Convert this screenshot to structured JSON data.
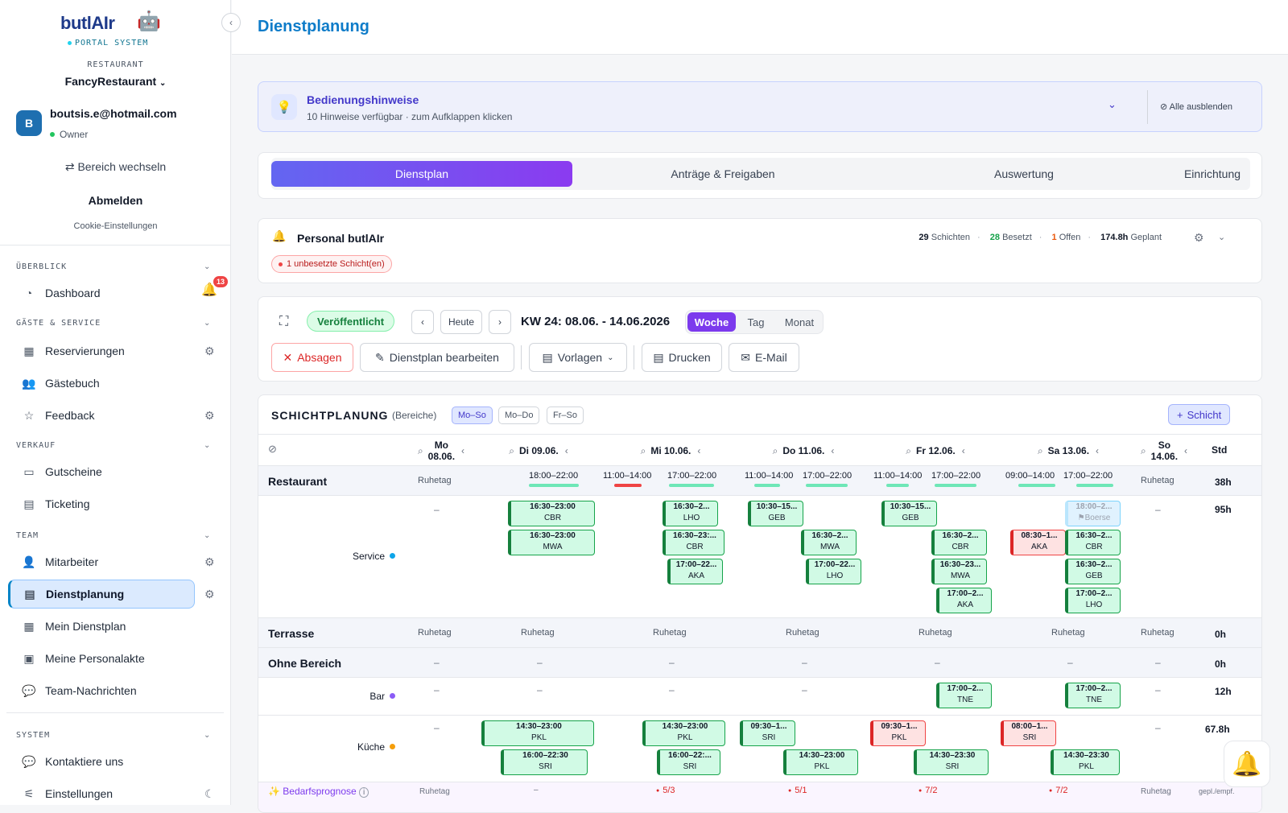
{
  "sidebar": {
    "brand_a": "butlAI",
    "brand_b": "r",
    "portal": "PORTAL SYSTEM",
    "restaurant_label": "RESTAURANT",
    "restaurant_name": "FancyRestaurant",
    "avatar_initial": "B",
    "user_email": "boutsis.e@hotmail.com",
    "user_role": "Owner",
    "switch_label": "Bereich wechseln",
    "logout_label": "Abmelden",
    "cookie_label": "Cookie-Einstellungen",
    "notification_count": "13",
    "sections": [
      {
        "title": "ÜBERBLICK"
      },
      {
        "title": "GÄSTE & SERVICE"
      },
      {
        "title": "VERKAUF"
      },
      {
        "title": "TEAM"
      },
      {
        "title": "SYSTEM"
      }
    ],
    "items": [
      {
        "label": "Dashboard"
      },
      {
        "label": "Reservierungen"
      },
      {
        "label": "Gästebuch"
      },
      {
        "label": "Feedback"
      },
      {
        "label": "Gutscheine"
      },
      {
        "label": "Ticketing"
      },
      {
        "label": "Mitarbeiter"
      },
      {
        "label": "Dienstplanung"
      },
      {
        "label": "Mein Dienstplan"
      },
      {
        "label": "Meine Personalakte"
      },
      {
        "label": "Team-Nachrichten"
      },
      {
        "label": "Kontaktiere uns"
      },
      {
        "label": "Einstellungen"
      }
    ]
  },
  "header": {
    "title": "Dienstplanung"
  },
  "hint": {
    "title": "Bedienungshinweise",
    "subtitle": "10 Hinweise verfügbar · zum Aufklappen klicken",
    "hide_all": "Alle ausblenden"
  },
  "tabs": [
    {
      "label": "Dienstplan"
    },
    {
      "label": "Anträge & Freigaben"
    },
    {
      "label": "Auswertung"
    },
    {
      "label": "Einrichtung"
    }
  ],
  "personal": {
    "title": "Personal butlAIr",
    "unfilled": "1 unbesetzte Schicht(en)",
    "shifts_count": "29",
    "shifts_label": "Schichten",
    "filled_count": "28",
    "filled_label": "Besetzt",
    "open_count": "1",
    "open_label": "Offen",
    "planned_hours": "174.8h",
    "planned_label": "Geplant"
  },
  "controls": {
    "status": "Veröffentlicht",
    "today": "Heute",
    "week_label": "KW 24: 08.06. - 14.06.2026",
    "views": [
      {
        "label": "Woche"
      },
      {
        "label": "Tag"
      },
      {
        "label": "Monat"
      }
    ],
    "cancel": "Absagen",
    "edit": "Dienstplan bearbeiten",
    "templates": "Vorlagen",
    "print": "Drucken",
    "email": "E-Mail"
  },
  "planning": {
    "title": "SCHICHTPLANUNG",
    "subtitle": "(Bereiche)",
    "filters": [
      {
        "label": "Mo–So"
      },
      {
        "label": "Mo–Do"
      },
      {
        "label": "Fr–So"
      }
    ],
    "add_shift": "Schicht",
    "std_header": "Std",
    "days": [
      {
        "label": "Mo",
        "date": "08.06."
      },
      {
        "label": "Di 09.06."
      },
      {
        "label": "Mi 10.06."
      },
      {
        "label": "Do 11.06."
      },
      {
        "label": "Fr 12.06."
      },
      {
        "label": "Sa 13.06."
      },
      {
        "label": "So",
        "date": "14.06."
      }
    ],
    "rest_day": "Ruhetag",
    "dash": "–",
    "areas": {
      "restaurant": {
        "name": "Restaurant",
        "hours": "38h"
      },
      "service": {
        "name": "Service",
        "hours": "95h"
      },
      "terrasse": {
        "name": "Terrasse",
        "hours": "0h"
      },
      "ohne": {
        "name": "Ohne Bereich",
        "hours": "0h"
      },
      "bar": {
        "name": "Bar",
        "hours": "12h"
      },
      "kueche": {
        "name": "Küche",
        "hours": "67.8h"
      }
    },
    "slots": [
      {
        "time": "18:00–22:00"
      },
      {
        "time": "11:00–14:00"
      },
      {
        "time": "17:00–22:00"
      },
      {
        "time": "11:00–14:00"
      },
      {
        "time": "17:00–22:00"
      },
      {
        "time": "11:00–14:00"
      },
      {
        "time": "17:00–22:00"
      },
      {
        "time": "09:00–14:00"
      },
      {
        "time": "17:00–22:00"
      }
    ],
    "shifts": [
      {
        "time": "16:30–23:00",
        "who": "CBR"
      },
      {
        "time": "16:30–23:00",
        "who": "MWA"
      },
      {
        "time": "16:30–2...",
        "who": "LHO"
      },
      {
        "time": "16:30–23:...",
        "who": "CBR"
      },
      {
        "time": "17:00–22...",
        "who": "AKA"
      },
      {
        "time": "10:30–15...",
        "who": "GEB"
      },
      {
        "time": "16:30–2...",
        "who": "MWA"
      },
      {
        "time": "17:00–22...",
        "who": "LHO"
      },
      {
        "time": "10:30–15...",
        "who": "GEB"
      },
      {
        "time": "16:30–2...",
        "who": "CBR"
      },
      {
        "time": "16:30–23...",
        "who": "MWA"
      },
      {
        "time": "17:00–2...",
        "who": "AKA"
      },
      {
        "time": "08:30–1...",
        "who": "AKA"
      },
      {
        "time": "18:00–2...",
        "who": "Boerse"
      },
      {
        "time": "16:30–2...",
        "who": "CBR"
      },
      {
        "time": "16:30–2...",
        "who": "GEB"
      },
      {
        "time": "17:00–2...",
        "who": "LHO"
      },
      {
        "time": "17:00–2...",
        "who": "TNE"
      },
      {
        "time": "17:00–2...",
        "who": "TNE"
      },
      {
        "time": "14:30–23:00",
        "who": "PKL"
      },
      {
        "time": "16:00–22:30",
        "who": "SRI"
      },
      {
        "time": "14:30–23:00",
        "who": "PKL"
      },
      {
        "time": "16:00–22:...",
        "who": "SRI"
      },
      {
        "time": "09:30–1...",
        "who": "SRI"
      },
      {
        "time": "14:30–23:00",
        "who": "PKL"
      },
      {
        "time": "09:30–1...",
        "who": "PKL"
      },
      {
        "time": "14:30–23:30",
        "who": "SRI"
      },
      {
        "time": "08:00–1...",
        "who": "SRI"
      },
      {
        "time": "14:30–23:30",
        "who": "PKL"
      }
    ],
    "forecast": {
      "label": "✨ Bedarfsprognose",
      "values": [
        "Ruhetag",
        "–",
        "5/3",
        "5/1",
        "7/2",
        "7/2",
        "Ruhetag"
      ],
      "tail": "gepl./empf."
    }
  },
  "colors": {
    "accent": "#0e7cc9",
    "tab_gradient_start": "#6366f1",
    "tab_gradient_end": "#8b3bf0",
    "shift_ok": "#d1fae5",
    "shift_open": "#fee2e2"
  }
}
